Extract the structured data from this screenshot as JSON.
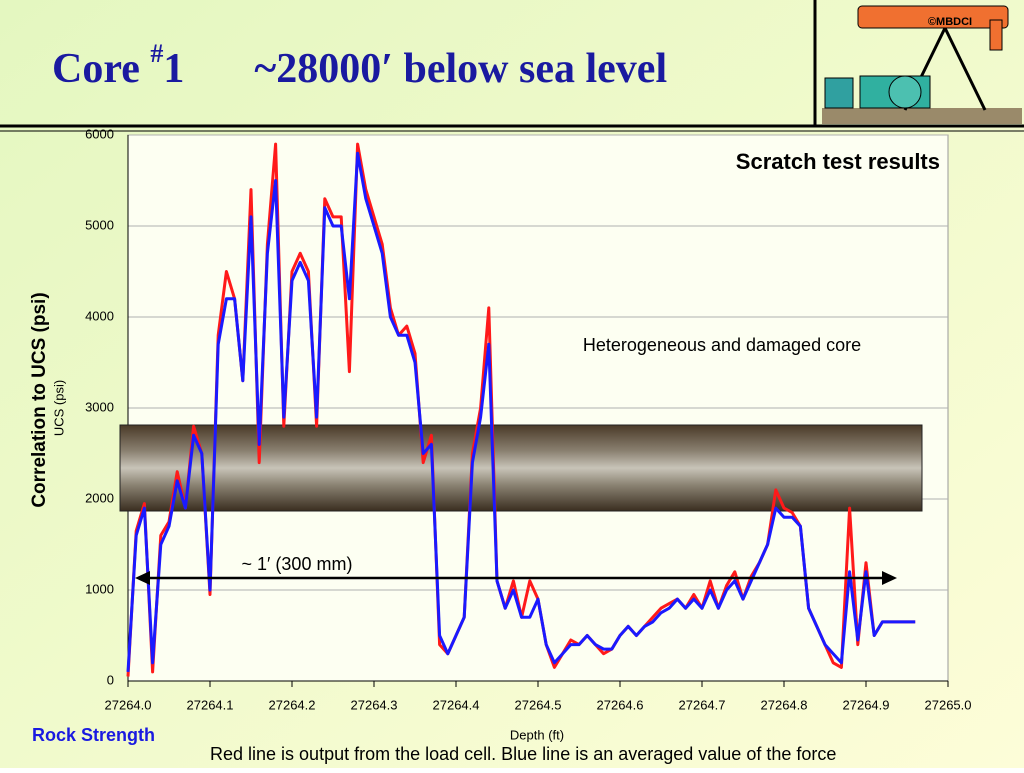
{
  "slide": {
    "title_prefix": "Core ",
    "title_sup": "#",
    "title_num": "1",
    "title_rest": "~28000′ below sea level",
    "logo": "©MBDCI",
    "side_label": "Correlation to UCS (psi)",
    "footer_left": "Rock Strength",
    "caption": "Red line is output from the load cell. Blue line is an averaged value of the force"
  },
  "chart_data": {
    "type": "line",
    "title": "Scratch test results",
    "annotations": [
      "Heterogeneous and damaged core",
      "~ 1′ (300 mm)"
    ],
    "ylabel": "UCS (psi)",
    "xlabel": "Depth (ft)",
    "xlim": [
      27264.0,
      27265.0
    ],
    "xticks": [
      {
        "value": 27264.0,
        "label": "27264.0"
      },
      27264.1,
      27264.2,
      27264.3,
      27264.4,
      27264.5,
      27264.6,
      27264.7,
      27264.8,
      27264.9,
      {
        "value": 27265.0,
        "label": "27265.0"
      }
    ],
    "ylim": [
      0,
      6000
    ],
    "yticks": [
      0,
      1000,
      2000,
      3000,
      4000,
      5000,
      6000
    ],
    "grid": true,
    "x": [
      27264.0,
      27264.01,
      27264.02,
      27264.03,
      27264.04,
      27264.05,
      27264.06,
      27264.07,
      27264.08,
      27264.09,
      27264.1,
      27264.11,
      27264.12,
      27264.13,
      27264.14,
      27264.15,
      27264.16,
      27264.17,
      27264.18,
      27264.19,
      27264.2,
      27264.21,
      27264.22,
      27264.23,
      27264.24,
      27264.25,
      27264.26,
      27264.27,
      27264.28,
      27264.29,
      27264.3,
      27264.31,
      27264.32,
      27264.33,
      27264.34,
      27264.35,
      27264.36,
      27264.37,
      27264.38,
      27264.39,
      27264.4,
      27264.41,
      27264.42,
      27264.43,
      27264.44,
      27264.45,
      27264.46,
      27264.47,
      27264.48,
      27264.49,
      27264.5,
      27264.51,
      27264.52,
      27264.53,
      27264.54,
      27264.55,
      27264.56,
      27264.57,
      27264.58,
      27264.59,
      27264.6,
      27264.61,
      27264.62,
      27264.63,
      27264.64,
      27264.65,
      27264.66,
      27264.67,
      27264.68,
      27264.69,
      27264.7,
      27264.71,
      27264.72,
      27264.73,
      27264.74,
      27264.75,
      27264.76,
      27264.77,
      27264.78,
      27264.79,
      27264.8,
      27264.81,
      27264.82,
      27264.83,
      27264.84,
      27264.85,
      27264.86,
      27264.87,
      27264.88,
      27264.89,
      27264.9,
      27264.91,
      27264.92,
      27264.93,
      27264.94,
      27264.95,
      27264.96
    ],
    "series": [
      {
        "color": "#ff1a1a",
        "values": [
          50,
          1650,
          1950,
          100,
          1600,
          1750,
          2300,
          1900,
          2800,
          2500,
          950,
          3800,
          4500,
          4200,
          3300,
          5400,
          2400,
          4800,
          5900,
          2800,
          4500,
          4700,
          4500,
          2800,
          5300,
          5100,
          5100,
          3400,
          5900,
          5400,
          5100,
          4800,
          4100,
          3800,
          3900,
          3600,
          2400,
          2700,
          400,
          300,
          500,
          700,
          2500,
          3000,
          4100,
          1100,
          800,
          1100,
          700,
          1100,
          900,
          400,
          150,
          300,
          450,
          400,
          500,
          400,
          300,
          350,
          500,
          600,
          500,
          600,
          700,
          800,
          850,
          900,
          800,
          950,
          800,
          1100,
          800,
          1050,
          1200,
          900,
          1150,
          1300,
          1500,
          2100,
          1900,
          1850,
          1700,
          800,
          600,
          400,
          200,
          150,
          1900,
          400,
          1300,
          500,
          650,
          650,
          650,
          650,
          650
        ]
      },
      {
        "color": "#1a1aff",
        "values": [
          100,
          1600,
          1900,
          200,
          1500,
          1700,
          2200,
          1900,
          2700,
          2500,
          1000,
          3700,
          4200,
          4200,
          3300,
          5100,
          2600,
          4700,
          5500,
          2900,
          4400,
          4600,
          4400,
          2900,
          5200,
          5000,
          5000,
          4200,
          5800,
          5300,
          5000,
          4700,
          4000,
          3800,
          3800,
          3500,
          2500,
          2600,
          500,
          300,
          500,
          700,
          2400,
          2900,
          3700,
          1100,
          800,
          1000,
          700,
          700,
          900,
          400,
          200,
          300,
          400,
          400,
          500,
          400,
          350,
          350,
          500,
          600,
          500,
          600,
          650,
          750,
          800,
          900,
          800,
          900,
          800,
          1000,
          800,
          1000,
          1100,
          900,
          1100,
          1300,
          1500,
          1900,
          1800,
          1800,
          1700,
          800,
          600,
          400,
          300,
          200,
          1200,
          450,
          1200,
          500,
          650,
          650,
          650,
          650,
          650
        ]
      }
    ]
  }
}
